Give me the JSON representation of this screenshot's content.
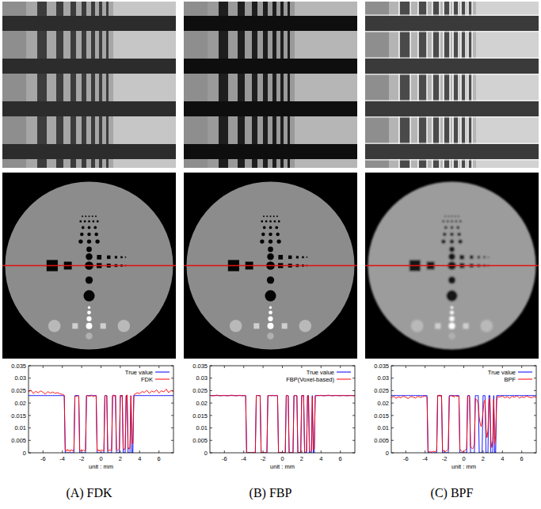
{
  "chart_data": [
    {
      "type": "line",
      "title": "(A) FDK",
      "x_label": "unit : mm",
      "legend": "upper right",
      "xlim": [
        -7.5,
        7.5
      ],
      "xticks": [
        -6,
        -4,
        -2,
        0,
        2,
        4,
        6
      ],
      "ylim": [
        0,
        0.035
      ],
      "yticks": [
        0,
        0.005,
        0.01,
        0.015,
        0.02,
        0.025,
        0.03,
        0.035
      ],
      "x": [
        -7.5,
        -7.25,
        -7,
        -6.75,
        -6.5,
        -6.25,
        -6,
        -5.75,
        -5.5,
        -5.25,
        -5,
        -4.75,
        -4.5,
        -4.25,
        -4,
        -3.9,
        -3.8,
        -3.7,
        -3.6,
        -3.5,
        -3.4,
        -3.3,
        -3.2,
        -3.1,
        -3,
        -2.9,
        -2.8,
        -2.7,
        -2.6,
        -2.5,
        -2.4,
        -2.3,
        -2.2,
        -2.1,
        -2,
        -1.9,
        -1.8,
        -1.7,
        -1.6,
        -1.5,
        -1.4,
        -1.3,
        -1.2,
        -1.1,
        -1,
        -0.9,
        -0.8,
        -0.7,
        -0.6,
        -0.5,
        -0.4,
        -0.3,
        -0.2,
        -0.1,
        0,
        0.1,
        0.2,
        0.3,
        0.4,
        0.5,
        0.6,
        0.7,
        0.8,
        0.9,
        1,
        1.1,
        1.2,
        1.3,
        1.4,
        1.5,
        1.6,
        1.7,
        1.8,
        1.9,
        2,
        2.1,
        2.2,
        2.3,
        2.4,
        2.5,
        2.6,
        2.7,
        2.8,
        2.9,
        3,
        3.1,
        3.2,
        3.3,
        3.4,
        3.5,
        3.75,
        4,
        4.25,
        4.5,
        4.75,
        5,
        5.25,
        5.5,
        5.75,
        6,
        6.25,
        6.5,
        6.75,
        7,
        7.25,
        7.5
      ],
      "series": [
        {
          "name": "True value",
          "color": "#0000ff",
          "values": [
            0.023,
            0.023,
            0.023,
            0.023,
            0.023,
            0.023,
            0.023,
            0.023,
            0.023,
            0.023,
            0.023,
            0.023,
            0.023,
            0.023,
            0.023,
            0.023,
            0.023,
            0,
            0,
            0,
            0,
            0,
            0,
            0,
            0,
            0,
            0,
            0.023,
            0.023,
            0.023,
            0.023,
            0.023,
            0,
            0,
            0,
            0,
            0,
            0,
            0,
            0.023,
            0.023,
            0.023,
            0.023,
            0.023,
            0.023,
            0.023,
            0.023,
            0.023,
            0.023,
            0.023,
            0,
            0,
            0,
            0,
            0,
            0,
            0,
            0,
            0.023,
            0.023,
            0.023,
            0,
            0,
            0,
            0,
            0,
            0.023,
            0.023,
            0.023,
            0.023,
            0,
            0,
            0,
            0,
            0.023,
            0.023,
            0.023,
            0,
            0,
            0,
            0.023,
            0.023,
            0,
            0,
            0,
            0.023,
            0,
            0,
            0.023,
            0.023,
            0.023,
            0.023,
            0.023,
            0.023,
            0.023,
            0.023,
            0.023,
            0.023,
            0.023,
            0.023,
            0.023,
            0.023,
            0.023,
            0.023,
            0.023,
            0.023
          ]
        },
        {
          "name": "FDK",
          "color": "#ff0000",
          "values": [
            0.0245,
            0.0252,
            0.0238,
            0.0247,
            0.0241,
            0.0249,
            0.0243,
            0.0236,
            0.0246,
            0.024,
            0.0244,
            0.0239,
            0.0242,
            0.0237,
            0.0235,
            0.0233,
            0.0231,
            0.0012,
            0.0006,
            0.0014,
            0.0008,
            0.0011,
            0.0005,
            0.0013,
            0.0009,
            0.0007,
            0.0015,
            0.0225,
            0.0229,
            0.0226,
            0.0231,
            0.0227,
            0.001,
            0.0006,
            0.0013,
            0.0008,
            0.0011,
            0.0007,
            0.0012,
            0.0228,
            0.0232,
            0.0226,
            0.023,
            0.0227,
            0.0233,
            0.0229,
            0.0225,
            0.0231,
            0.0228,
            0.023,
            0.0009,
            0.0013,
            0.0006,
            0.0011,
            0.0008,
            0.0012,
            0.0007,
            0.001,
            0.0226,
            0.0232,
            0.0228,
            0.0011,
            0.0007,
            0.0013,
            0.0009,
            0.0012,
            0.0229,
            0.0233,
            0.0227,
            0.0231,
            0.0014,
            0.0009,
            0.0012,
            0.0016,
            0.023,
            0.0226,
            0.0232,
            0.0018,
            0.0012,
            0.002,
            0.0228,
            0.0233,
            0.0022,
            0.0015,
            0.0024,
            0.0229,
            0.0035,
            0.0041,
            0.0231,
            0.0236,
            0.0241,
            0.0238,
            0.0246,
            0.0243,
            0.0251,
            0.0239,
            0.0248,
            0.0244,
            0.0253,
            0.024,
            0.0249,
            0.0245,
            0.0256,
            0.0242,
            0.025,
            0.0247
          ]
        }
      ]
    },
    {
      "type": "line",
      "title": "(B) FBP",
      "x_label": "unit : mm",
      "legend": "upper right",
      "xlim": [
        -7.5,
        7.5
      ],
      "xticks": [
        -6,
        -4,
        -2,
        0,
        2,
        4,
        6
      ],
      "ylim": [
        0,
        0.035
      ],
      "yticks": [
        0,
        0.005,
        0.01,
        0.015,
        0.02,
        0.025,
        0.03,
        0.035
      ],
      "x": [
        -7.5,
        -7.25,
        -7,
        -6.75,
        -6.5,
        -6.25,
        -6,
        -5.75,
        -5.5,
        -5.25,
        -5,
        -4.75,
        -4.5,
        -4.25,
        -4,
        -3.9,
        -3.8,
        -3.7,
        -3.6,
        -3.5,
        -3.4,
        -3.3,
        -3.2,
        -3.1,
        -3,
        -2.9,
        -2.8,
        -2.7,
        -2.6,
        -2.5,
        -2.4,
        -2.3,
        -2.2,
        -2.1,
        -2,
        -1.9,
        -1.8,
        -1.7,
        -1.6,
        -1.5,
        -1.4,
        -1.3,
        -1.2,
        -1.1,
        -1,
        -0.9,
        -0.8,
        -0.7,
        -0.6,
        -0.5,
        -0.4,
        -0.3,
        -0.2,
        -0.1,
        0,
        0.1,
        0.2,
        0.3,
        0.4,
        0.5,
        0.6,
        0.7,
        0.8,
        0.9,
        1,
        1.1,
        1.2,
        1.3,
        1.4,
        1.5,
        1.6,
        1.7,
        1.8,
        1.9,
        2,
        2.1,
        2.2,
        2.3,
        2.4,
        2.5,
        2.6,
        2.7,
        2.8,
        2.9,
        3,
        3.1,
        3.2,
        3.3,
        3.4,
        3.5,
        3.75,
        4,
        4.25,
        4.5,
        4.75,
        5,
        5.25,
        5.5,
        5.75,
        6,
        6.25,
        6.5,
        6.75,
        7,
        7.25,
        7.5
      ],
      "series": [
        {
          "name": "True value",
          "color": "#0000ff",
          "values": [
            0.023,
            0.023,
            0.023,
            0.023,
            0.023,
            0.023,
            0.023,
            0.023,
            0.023,
            0.023,
            0.023,
            0.023,
            0.023,
            0.023,
            0.023,
            0.023,
            0.023,
            0,
            0,
            0,
            0,
            0,
            0,
            0,
            0,
            0,
            0,
            0.023,
            0.023,
            0.023,
            0.023,
            0.023,
            0,
            0,
            0,
            0,
            0,
            0,
            0,
            0.023,
            0.023,
            0.023,
            0.023,
            0.023,
            0.023,
            0.023,
            0.023,
            0.023,
            0.023,
            0.023,
            0,
            0,
            0,
            0,
            0,
            0,
            0,
            0,
            0.023,
            0.023,
            0.023,
            0,
            0,
            0,
            0,
            0,
            0.023,
            0.023,
            0.023,
            0.023,
            0,
            0,
            0,
            0,
            0.023,
            0.023,
            0.023,
            0,
            0,
            0,
            0.023,
            0.023,
            0,
            0,
            0,
            0.023,
            0,
            0,
            0.023,
            0.023,
            0.023,
            0.023,
            0.023,
            0.023,
            0.023,
            0.023,
            0.023,
            0.023,
            0.023,
            0.023,
            0.023,
            0.023,
            0.023,
            0.023,
            0.023,
            0.023
          ]
        },
        {
          "name": "FBP(Voxel-based)",
          "color": "#ff0000",
          "values": [
            0.0231,
            0.0229,
            0.023,
            0.0232,
            0.0229,
            0.023,
            0.0231,
            0.0229,
            0.023,
            0.0232,
            0.023,
            0.0229,
            0.0231,
            0.023,
            0.0229,
            0.0231,
            0.0229,
            0.0001,
            0,
            0.0002,
            0,
            0.0001,
            0,
            0.0002,
            0.0001,
            0,
            0.0001,
            0.0229,
            0.0231,
            0.023,
            0.0229,
            0.0231,
            0.0001,
            0,
            0.0002,
            0.0001,
            0,
            0.0001,
            0.0002,
            0.023,
            0.0229,
            0.0231,
            0.023,
            0.0229,
            0.0231,
            0.023,
            0.0229,
            0.023,
            0.0231,
            0.0229,
            0.0001,
            0,
            0.0001,
            0.0002,
            0,
            0.0001,
            0,
            0.0002,
            0.023,
            0.0231,
            0.0229,
            0.0001,
            0.0002,
            0,
            0.0001,
            0.0002,
            0.0229,
            0.0231,
            0.023,
            0.0229,
            0.0003,
            0.0001,
            0.0002,
            0.0004,
            0.023,
            0.0229,
            0.0231,
            0.0005,
            0.0002,
            0.0006,
            0.0228,
            0.023,
            0.0007,
            0.0004,
            0.0008,
            0.0227,
            0.0012,
            0.0015,
            0.0228,
            0.023,
            0.023,
            0.0231,
            0.0229,
            0.023,
            0.0232,
            0.023,
            0.0229,
            0.0231,
            0.023,
            0.0229,
            0.0231,
            0.023,
            0.0229,
            0.0231,
            0.023,
            0.0229
          ]
        }
      ]
    },
    {
      "type": "line",
      "title": "(C) BPF",
      "x_label": "unit : mm",
      "legend": "upper right",
      "xlim": [
        -7.5,
        7.5
      ],
      "xticks": [
        -6,
        -4,
        -2,
        0,
        2,
        4,
        6
      ],
      "ylim": [
        0,
        0.035
      ],
      "yticks": [
        0,
        0.005,
        0.01,
        0.015,
        0.02,
        0.025,
        0.03,
        0.035
      ],
      "x": [
        -7.5,
        -7.25,
        -7,
        -6.75,
        -6.5,
        -6.25,
        -6,
        -5.75,
        -5.5,
        -5.25,
        -5,
        -4.75,
        -4.5,
        -4.25,
        -4,
        -3.9,
        -3.8,
        -3.7,
        -3.6,
        -3.5,
        -3.4,
        -3.3,
        -3.2,
        -3.1,
        -3,
        -2.9,
        -2.8,
        -2.7,
        -2.6,
        -2.5,
        -2.4,
        -2.3,
        -2.2,
        -2.1,
        -2,
        -1.9,
        -1.8,
        -1.7,
        -1.6,
        -1.5,
        -1.4,
        -1.3,
        -1.2,
        -1.1,
        -1,
        -0.9,
        -0.8,
        -0.7,
        -0.6,
        -0.5,
        -0.4,
        -0.3,
        -0.2,
        -0.1,
        0,
        0.1,
        0.2,
        0.3,
        0.4,
        0.5,
        0.6,
        0.7,
        0.8,
        0.9,
        1,
        1.1,
        1.2,
        1.3,
        1.4,
        1.5,
        1.6,
        1.7,
        1.8,
        1.9,
        2,
        2.1,
        2.2,
        2.3,
        2.4,
        2.5,
        2.6,
        2.7,
        2.8,
        2.9,
        3,
        3.1,
        3.2,
        3.3,
        3.4,
        3.5,
        3.75,
        4,
        4.25,
        4.5,
        4.75,
        5,
        5.25,
        5.5,
        5.75,
        6,
        6.25,
        6.5,
        6.75,
        7,
        7.25,
        7.5
      ],
      "series": [
        {
          "name": "True value",
          "color": "#0000ff",
          "values": [
            0.023,
            0.023,
            0.023,
            0.023,
            0.023,
            0.023,
            0.023,
            0.023,
            0.023,
            0.023,
            0.023,
            0.023,
            0.023,
            0.023,
            0.023,
            0.023,
            0.023,
            0,
            0,
            0,
            0,
            0,
            0,
            0,
            0,
            0,
            0,
            0.023,
            0.023,
            0.023,
            0.023,
            0.023,
            0,
            0,
            0,
            0,
            0,
            0,
            0,
            0.023,
            0.023,
            0.023,
            0.023,
            0.023,
            0.023,
            0.023,
            0.023,
            0.023,
            0.023,
            0.023,
            0,
            0,
            0,
            0,
            0,
            0,
            0,
            0,
            0.023,
            0.023,
            0.023,
            0,
            0,
            0,
            0,
            0,
            0.023,
            0.023,
            0.023,
            0.023,
            0,
            0,
            0,
            0,
            0.023,
            0.023,
            0.023,
            0,
            0,
            0,
            0.023,
            0.023,
            0,
            0,
            0,
            0.023,
            0,
            0,
            0.023,
            0.023,
            0.023,
            0.023,
            0.023,
            0.023,
            0.023,
            0.023,
            0.023,
            0.023,
            0.023,
            0.023,
            0.023,
            0.023,
            0.023,
            0.023,
            0.023,
            0.023
          ]
        },
        {
          "name": "BPF",
          "color": "#ff0000",
          "values": [
            0.0222,
            0.0227,
            0.0219,
            0.0225,
            0.0221,
            0.0228,
            0.0223,
            0.0218,
            0.0226,
            0.0224,
            0.022,
            0.0227,
            0.0223,
            0.0225,
            0.0229,
            0.0226,
            0.0221,
            0.0008,
            0.0003,
            0.0006,
            0.0002,
            0.0005,
            0.0004,
            0.0007,
            0.0003,
            0.0006,
            0.001,
            0.0231,
            0.0227,
            0.0233,
            0.0226,
            0.023,
            0.0012,
            0.0006,
            0.0009,
            0.0004,
            0.0008,
            0.0011,
            0.0015,
            0.0224,
            0.0229,
            0.0232,
            0.0226,
            0.023,
            0.0223,
            0.0228,
            0.0231,
            0.0225,
            0.0229,
            0.0227,
            0.0015,
            0.0009,
            0.0006,
            0.0004,
            0.0005,
            0.0008,
            0.0011,
            0.0018,
            0.0226,
            0.0231,
            0.0224,
            0.0028,
            0.0019,
            0.0016,
            0.0021,
            0.0034,
            0.0218,
            0.0214,
            0.0209,
            0.0196,
            0.0142,
            0.0118,
            0.0105,
            0.0127,
            0.0168,
            0.0205,
            0.0212,
            0.0098,
            0.0061,
            0.0087,
            0.0198,
            0.0221,
            0.0052,
            0.0021,
            0.0048,
            0.0215,
            0.0035,
            0.0068,
            0.0209,
            0.0226,
            0.0224,
            0.0228,
            0.0221,
            0.0226,
            0.0219,
            0.0227,
            0.0223,
            0.0229,
            0.022,
            0.0225,
            0.0222,
            0.0228,
            0.0224,
            0.0221,
            0.0226,
            0.0223
          ]
        }
      ]
    }
  ]
}
